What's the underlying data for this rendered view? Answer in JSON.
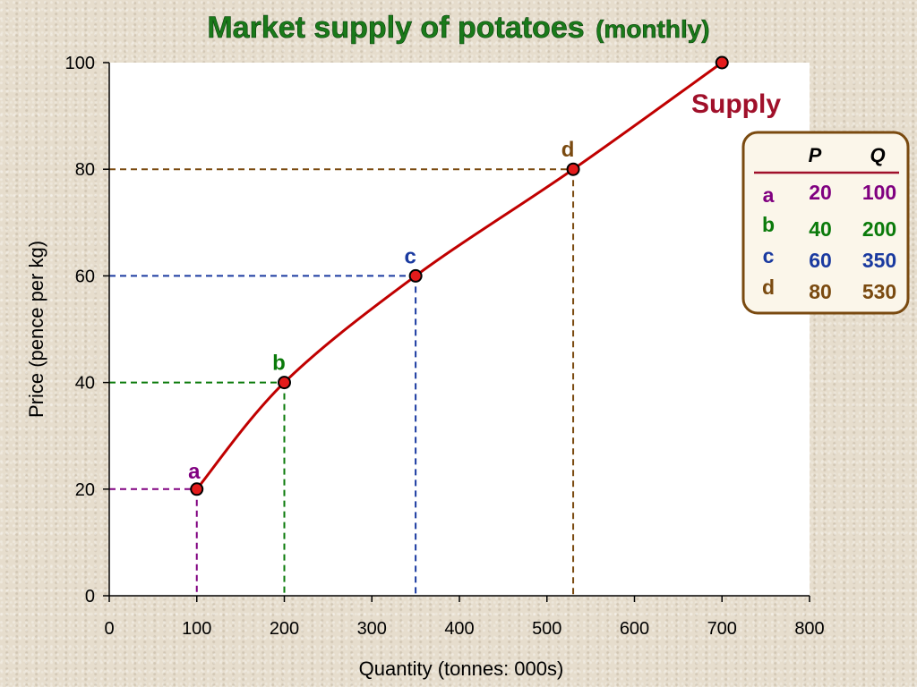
{
  "title_main": "Market supply of potatoes",
  "title_sub": "(monthly)",
  "chart_data": {
    "type": "line",
    "title": "Market supply of potatoes (monthly)",
    "xlabel": "Quantity (tonnes: 000s)",
    "ylabel": "Price (pence per kg)",
    "xlim": [
      0,
      800
    ],
    "ylim": [
      0,
      100
    ],
    "x_ticks": [
      "0",
      "100",
      "200",
      "300",
      "400",
      "500",
      "600",
      "700",
      "800"
    ],
    "y_ticks": [
      "0",
      "20",
      "40",
      "60",
      "80",
      "100"
    ],
    "grid": false,
    "series": [
      {
        "name": "Supply",
        "x": [
          100,
          200,
          350,
          530,
          700
        ],
        "y": [
          20,
          40,
          60,
          80,
          100
        ],
        "color": "#c00000"
      }
    ],
    "points": [
      {
        "label": "a",
        "x": 100,
        "y": 20,
        "color": "#800080"
      },
      {
        "label": "b",
        "x": 200,
        "y": 40,
        "color": "#0a7a0a"
      },
      {
        "label": "c",
        "x": 350,
        "y": 60,
        "color": "#1a3aa0"
      },
      {
        "label": "d",
        "x": 530,
        "y": 80,
        "color": "#7a4a10"
      }
    ]
  },
  "table": {
    "headers": [
      "P",
      "Q"
    ],
    "rows": [
      {
        "label": "a",
        "p": "20",
        "q": "100",
        "color": "#800080"
      },
      {
        "label": "b",
        "p": "40",
        "q": "200",
        "color": "#0a7a0a"
      },
      {
        "label": "c",
        "p": "60",
        "q": "350",
        "color": "#1a3aa0"
      },
      {
        "label": "d",
        "p": "80",
        "q": "530",
        "color": "#7a4a10"
      }
    ],
    "border_color": "#7a4a10",
    "rule_color": "#a0102a"
  }
}
